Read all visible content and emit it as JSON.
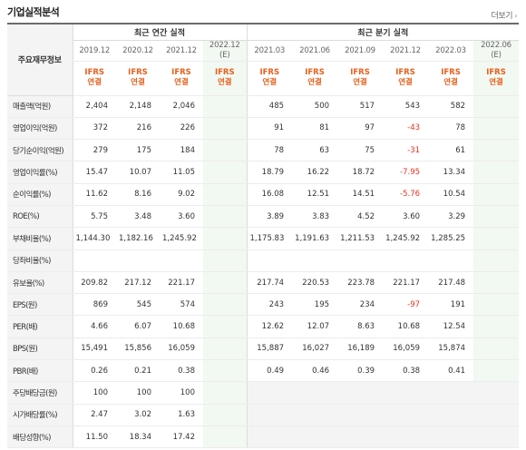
{
  "header": {
    "title": "기업실적분석",
    "more_label": "더보기"
  },
  "table": {
    "corner_label": "주요재무정보",
    "annual_group_label": "최근 연간 실적",
    "quarter_group_label": "최근 분기 실적",
    "annual_years": [
      "2019.12",
      "2020.12",
      "2021.12"
    ],
    "annual_est_year": "2022.12",
    "annual_est_mark": "(E)",
    "quarter_years": [
      "2021.03",
      "2021.06",
      "2021.09",
      "2021.12",
      "2022.03"
    ],
    "quarter_est_year": "2022.06",
    "quarter_est_mark": "(E)",
    "ifrs_top": "IFRS",
    "ifrs_bottom": "연결",
    "rows": [
      {
        "label": "매출액(억원)",
        "annual": [
          "2,404",
          "2,148",
          "2,046"
        ],
        "quarter": [
          "485",
          "500",
          "517",
          "543",
          "582"
        ],
        "neg_q": []
      },
      {
        "label": "영업이익(억원)",
        "annual": [
          "372",
          "216",
          "226"
        ],
        "quarter": [
          "91",
          "81",
          "97",
          "-43",
          "78"
        ],
        "neg_q": [
          3
        ]
      },
      {
        "label": "당기순이익(억원)",
        "annual": [
          "279",
          "175",
          "184"
        ],
        "quarter": [
          "78",
          "63",
          "75",
          "-31",
          "61"
        ],
        "neg_q": [
          3
        ]
      },
      {
        "label": "영업이익률(%)",
        "annual": [
          "15.47",
          "10.07",
          "11.05"
        ],
        "quarter": [
          "18.79",
          "16.22",
          "18.72",
          "-7.95",
          "13.34"
        ],
        "neg_q": [
          3
        ]
      },
      {
        "label": "순이익률(%)",
        "annual": [
          "11.62",
          "8.16",
          "9.02"
        ],
        "quarter": [
          "16.08",
          "12.51",
          "14.51",
          "-5.76",
          "10.54"
        ],
        "neg_q": [
          3
        ]
      },
      {
        "label": "ROE(%)",
        "annual": [
          "5.75",
          "3.48",
          "3.60"
        ],
        "quarter": [
          "3.89",
          "3.83",
          "4.52",
          "3.60",
          "3.29"
        ],
        "neg_q": []
      },
      {
        "label": "부채비율(%)",
        "annual": [
          "1,144.30",
          "1,182.16",
          "1,245.92"
        ],
        "quarter": [
          "1,175.83",
          "1,191.63",
          "1,211.53",
          "1,245.92",
          "1,285.25"
        ],
        "neg_q": []
      },
      {
        "label": "당좌비율(%)",
        "annual": [
          "",
          "",
          ""
        ],
        "quarter": [
          "",
          "",
          "",
          "",
          ""
        ],
        "neg_q": []
      },
      {
        "label": "유보율(%)",
        "annual": [
          "209.82",
          "217.12",
          "221.17"
        ],
        "quarter": [
          "217.74",
          "220.53",
          "223.78",
          "221.17",
          "217.48"
        ],
        "neg_q": []
      },
      {
        "label": "EPS(원)",
        "annual": [
          "869",
          "545",
          "574"
        ],
        "quarter": [
          "243",
          "195",
          "234",
          "-97",
          "191"
        ],
        "neg_q": [
          3
        ]
      },
      {
        "label": "PER(배)",
        "annual": [
          "4.66",
          "6.07",
          "10.68"
        ],
        "quarter": [
          "12.62",
          "12.07",
          "8.63",
          "10.68",
          "12.54"
        ],
        "neg_q": []
      },
      {
        "label": "BPS(원)",
        "annual": [
          "15,491",
          "15,856",
          "16,059"
        ],
        "quarter": [
          "15,887",
          "16,027",
          "16,189",
          "16,059",
          "15,874"
        ],
        "neg_q": []
      },
      {
        "label": "PBR(배)",
        "annual": [
          "0.26",
          "0.21",
          "0.38"
        ],
        "quarter": [
          "0.49",
          "0.46",
          "0.39",
          "0.38",
          "0.41"
        ],
        "neg_q": []
      },
      {
        "label": "주당배당금(원)",
        "annual": [
          "100",
          "100",
          "100"
        ],
        "quarter": [
          "",
          "",
          "",
          "",
          ""
        ],
        "neg_q": [],
        "quarter_blank": true
      },
      {
        "label": "시가배당률(%)",
        "annual": [
          "2.47",
          "3.02",
          "1.63"
        ],
        "quarter": [
          "",
          "",
          "",
          "",
          ""
        ],
        "neg_q": [],
        "quarter_blank": true
      },
      {
        "label": "배당성향(%)",
        "annual": [
          "11.50",
          "18.34",
          "17.42"
        ],
        "quarter": [
          "",
          "",
          "",
          "",
          ""
        ],
        "neg_q": [],
        "quarter_blank": true
      }
    ]
  }
}
